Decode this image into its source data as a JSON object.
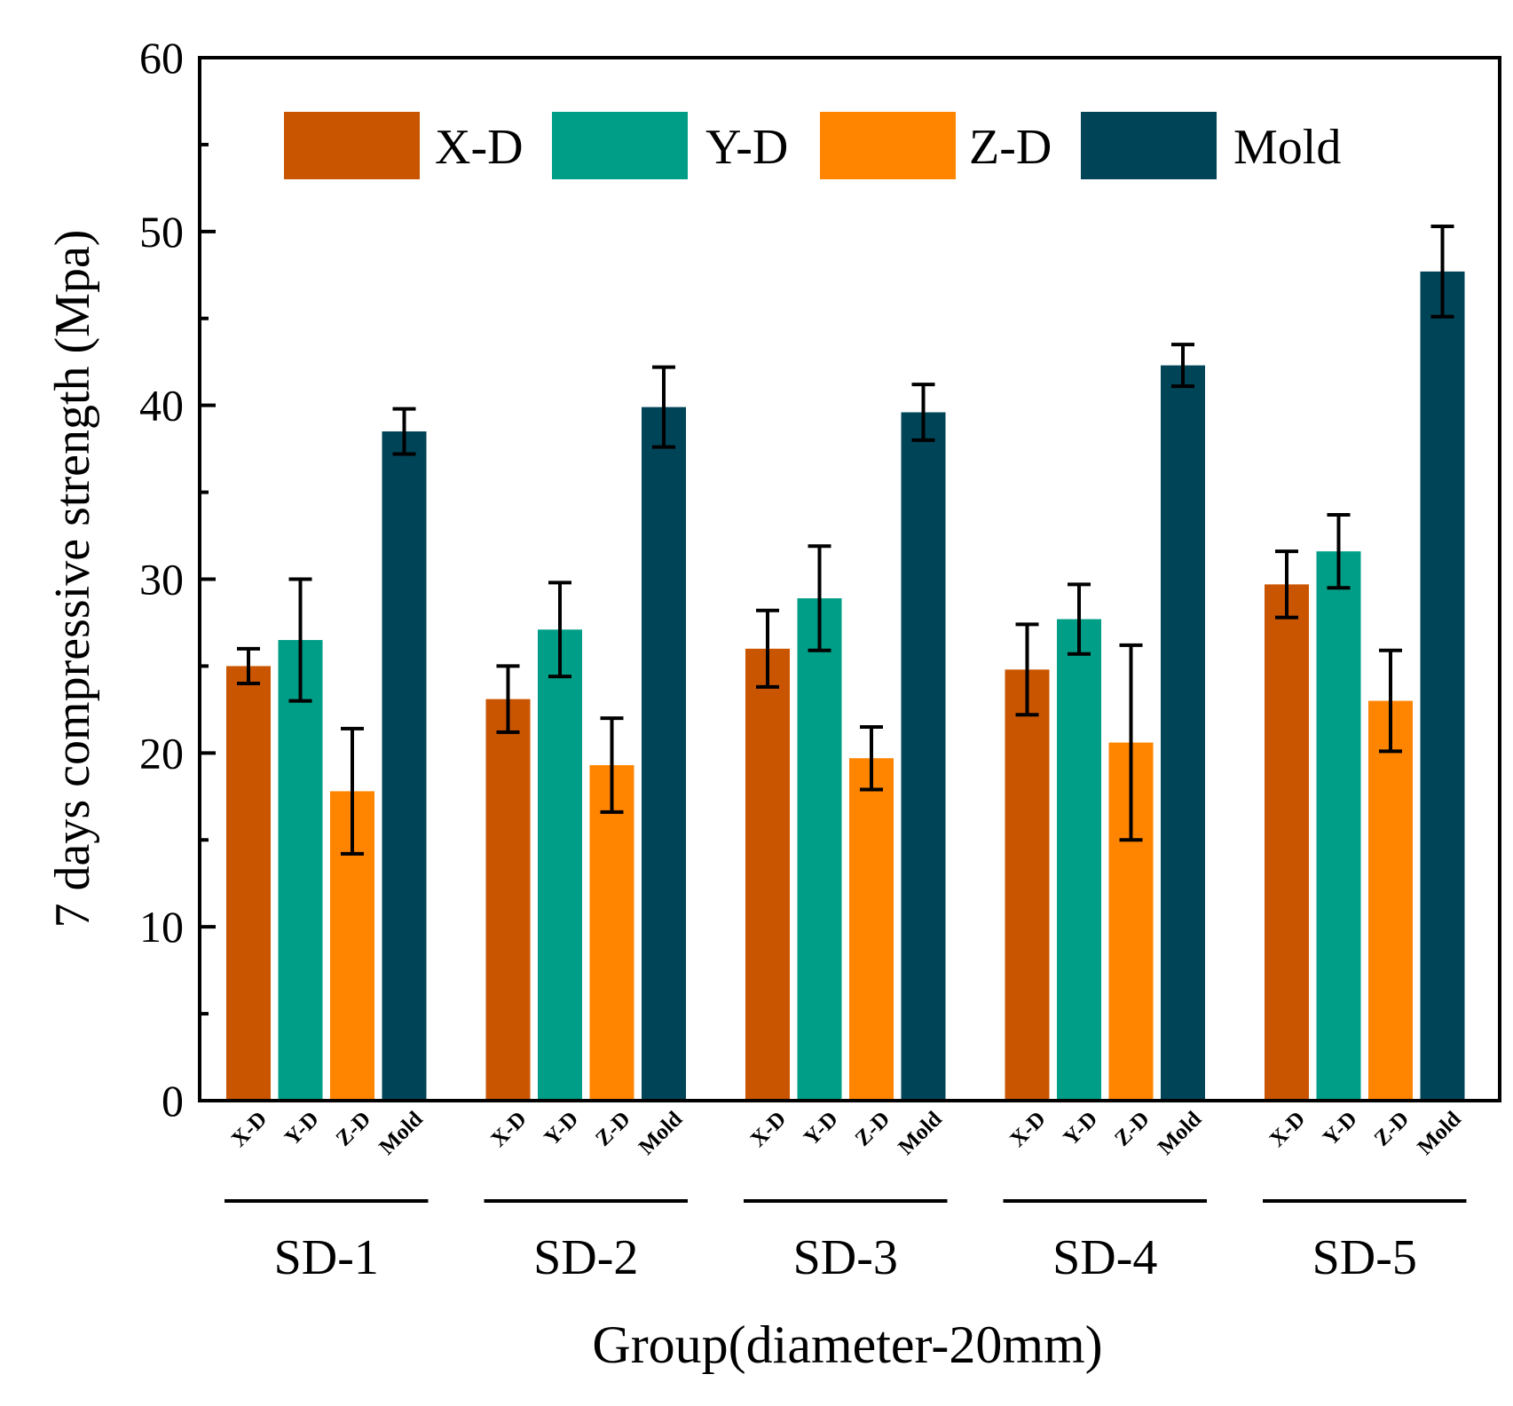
{
  "chart_data": {
    "type": "bar",
    "title": "",
    "xlabel": "Group(diameter-20mm)",
    "ylabel": "7 days compressive strength (Mpa)",
    "ylim": [
      0,
      60
    ],
    "yticks": [
      "0",
      "10",
      "20",
      "30",
      "40",
      "50",
      "60"
    ],
    "ytick_values": [
      0,
      10,
      20,
      30,
      40,
      50,
      60
    ],
    "grid": false,
    "legend_position": "top",
    "groups": [
      "SD-1",
      "SD-2",
      "SD-3",
      "SD-4",
      "SD-5"
    ],
    "series_labels": [
      "X-D",
      "Y-D",
      "Z-D",
      "Mold"
    ],
    "series": [
      {
        "name": "X-D",
        "color": "#C95500",
        "values": [
          25.0,
          23.1,
          26.0,
          24.8,
          29.7
        ],
        "errors": [
          1.0,
          1.9,
          2.2,
          2.6,
          1.9
        ]
      },
      {
        "name": "Y-D",
        "color": "#009E87",
        "values": [
          26.5,
          27.1,
          28.9,
          27.7,
          31.6
        ],
        "errors": [
          3.5,
          2.7,
          3.0,
          2.0,
          2.1
        ]
      },
      {
        "name": "Z-D",
        "color": "#FF8400",
        "values": [
          17.8,
          19.3,
          19.7,
          20.6,
          23.0
        ],
        "errors": [
          3.6,
          2.7,
          1.8,
          5.6,
          2.9
        ]
      },
      {
        "name": "Mold",
        "color": "#004457",
        "values": [
          38.5,
          39.9,
          39.6,
          42.3,
          47.7
        ],
        "errors": [
          1.3,
          2.3,
          1.6,
          1.2,
          2.6
        ]
      }
    ]
  }
}
